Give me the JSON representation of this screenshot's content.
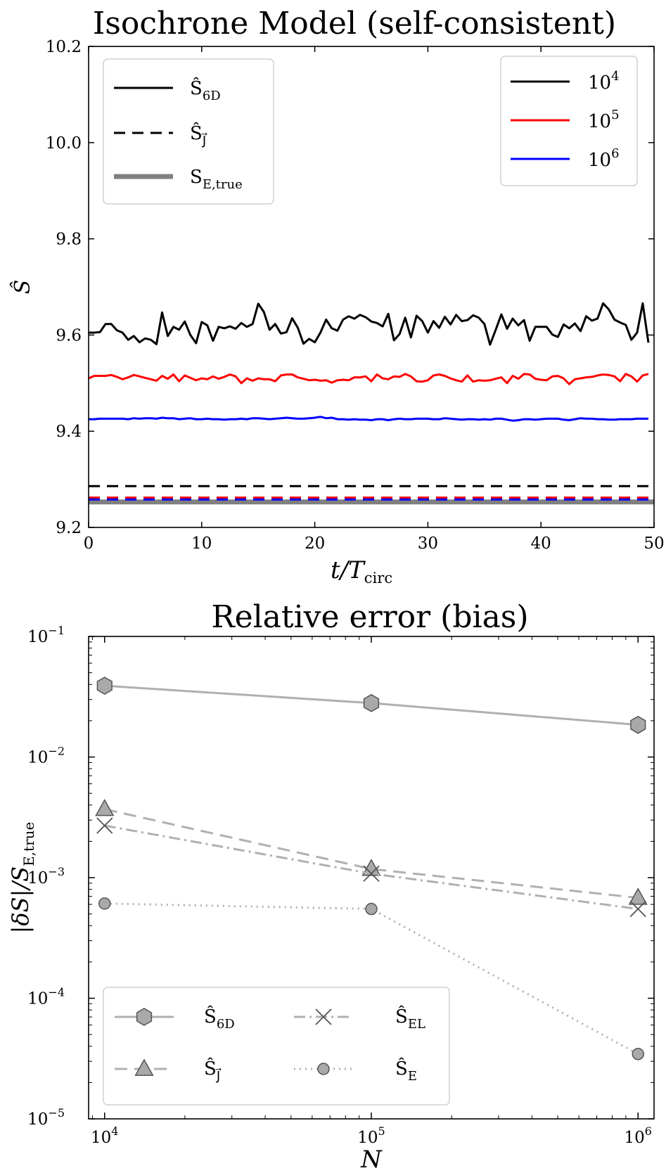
{
  "chart_data": [
    {
      "type": "line",
      "title": "Isochrone Model (self-consistent)",
      "xlabel_main": "t/T",
      "xlabel_sub": "circ",
      "ylabel": "Ŝ",
      "xlim": [
        0,
        50
      ],
      "ylim": [
        9.2,
        10.2
      ],
      "xticks": [
        0,
        10,
        20,
        30,
        40,
        50
      ],
      "xtick_labels": [
        "0",
        "10",
        "20",
        "30",
        "40",
        "50"
      ],
      "yticks": [
        9.2,
        9.4,
        9.6,
        9.8,
        10.0,
        10.2
      ],
      "ytick_labels": [
        "9.2",
        "9.4",
        "9.6",
        "9.8",
        "10.0",
        "10.2"
      ],
      "style_legend": [
        {
          "base": "Ŝ",
          "sub": "6D",
          "line": "solid"
        },
        {
          "base": "Ŝ",
          "sub": "J⃗",
          "line": "dashed"
        },
        {
          "base": "S",
          "sub": "E,true",
          "line": "thick-gray"
        }
      ],
      "color_legend": [
        {
          "base": "10",
          "sup": "4",
          "color": "#000000"
        },
        {
          "base": "10",
          "sup": "5",
          "color": "#ff0000"
        },
        {
          "base": "10",
          "sup": "6",
          "color": "#0000ff"
        }
      ],
      "true_value": 9.253,
      "true_color": "#808080",
      "series": [
        {
          "name": "6D N=1e4",
          "color": "#000000",
          "style": "solid",
          "x": [
            0,
            0.5,
            1,
            1.5,
            2,
            2.5,
            3,
            3.5,
            4,
            4.5,
            5,
            5.5,
            6,
            6.5,
            7,
            7.5,
            8,
            8.5,
            9,
            9.5,
            10,
            10.5,
            11,
            11.5,
            12,
            12.5,
            13,
            13.5,
            14,
            14.5,
            15,
            15.5,
            16,
            16.5,
            17,
            17.5,
            18,
            18.5,
            19,
            19.5,
            20,
            20.5,
            21,
            21.5,
            22,
            22.5,
            23,
            23.5,
            24,
            24.5,
            25,
            25.5,
            26,
            26.5,
            27,
            27.5,
            28,
            28.5,
            29,
            29.5,
            30,
            30.5,
            31,
            31.5,
            32,
            32.5,
            33,
            33.5,
            34,
            34.5,
            35,
            35.5,
            36,
            36.5,
            37,
            37.5,
            38,
            38.5,
            39,
            39.5,
            40,
            40.5,
            41,
            41.5,
            42,
            42.5,
            43,
            43.5,
            44,
            44.5,
            45,
            45.5,
            46,
            46.5,
            47,
            47.5,
            48,
            48.5,
            49,
            49.5
          ],
          "values": [
            9.605,
            9.605,
            9.606,
            9.623,
            9.623,
            9.61,
            9.605,
            9.59,
            9.598,
            9.585,
            9.593,
            9.59,
            9.581,
            9.647,
            9.598,
            9.617,
            9.611,
            9.628,
            9.6,
            9.583,
            9.627,
            9.62,
            9.588,
            9.617,
            9.614,
            9.618,
            9.613,
            9.625,
            9.617,
            9.623,
            9.665,
            9.648,
            9.611,
            9.623,
            9.603,
            9.606,
            9.635,
            9.615,
            9.582,
            9.592,
            9.585,
            9.605,
            9.632,
            9.614,
            9.609,
            9.632,
            9.639,
            9.634,
            9.642,
            9.637,
            9.628,
            9.625,
            9.618,
            9.644,
            9.589,
            9.602,
            9.636,
            9.595,
            9.64,
            9.629,
            9.605,
            9.629,
            9.615,
            9.638,
            9.622,
            9.642,
            9.629,
            9.631,
            9.641,
            9.636,
            9.623,
            9.58,
            9.611,
            9.643,
            9.613,
            9.634,
            9.62,
            9.631,
            9.588,
            9.617,
            9.617,
            9.617,
            9.601,
            9.596,
            9.622,
            9.614,
            9.624,
            9.608,
            9.639,
            9.63,
            9.634,
            9.666,
            9.653,
            9.632,
            9.626,
            9.621,
            9.59,
            9.605,
            9.666,
            9.584
          ]
        },
        {
          "name": "6D N=1e5",
          "color": "#ff0000",
          "style": "solid",
          "x": [
            0,
            0.5,
            1,
            1.5,
            2,
            2.5,
            3,
            3.5,
            4,
            4.5,
            5,
            5.5,
            6,
            6.5,
            7,
            7.5,
            8,
            8.5,
            9,
            9.5,
            10,
            10.5,
            11,
            11.5,
            12,
            12.5,
            13,
            13.5,
            14,
            14.5,
            15,
            15.5,
            16,
            16.5,
            17,
            17.5,
            18,
            18.5,
            19,
            19.5,
            20,
            20.5,
            21,
            21.5,
            22,
            22.5,
            23,
            23.5,
            24,
            24.5,
            25,
            25.5,
            26,
            26.5,
            27,
            27.5,
            28,
            28.5,
            29,
            29.5,
            30,
            30.5,
            31,
            31.5,
            32,
            32.5,
            33,
            33.5,
            34,
            34.5,
            35,
            35.5,
            36,
            36.5,
            37,
            37.5,
            38,
            38.5,
            39,
            39.5,
            40,
            40.5,
            41,
            41.5,
            42,
            42.5,
            43,
            43.5,
            44,
            44.5,
            45,
            45.5,
            46,
            46.5,
            47,
            47.5,
            48,
            48.5,
            49,
            49.5
          ],
          "values": [
            9.51,
            9.515,
            9.515,
            9.515,
            9.517,
            9.513,
            9.508,
            9.512,
            9.517,
            9.514,
            9.511,
            9.508,
            9.505,
            9.515,
            9.509,
            9.518,
            9.504,
            9.516,
            9.511,
            9.506,
            9.51,
            9.508,
            9.514,
            9.509,
            9.513,
            9.518,
            9.514,
            9.5,
            9.51,
            9.505,
            9.51,
            9.508,
            9.508,
            9.504,
            9.516,
            9.518,
            9.518,
            9.512,
            9.509,
            9.506,
            9.507,
            9.505,
            9.506,
            9.501,
            9.506,
            9.507,
            9.506,
            9.512,
            9.512,
            9.514,
            9.504,
            9.518,
            9.51,
            9.508,
            9.514,
            9.513,
            9.519,
            9.514,
            9.504,
            9.503,
            9.506,
            9.516,
            9.518,
            9.515,
            9.51,
            9.506,
            9.503,
            9.516,
            9.503,
            9.506,
            9.505,
            9.506,
            9.509,
            9.512,
            9.5,
            9.515,
            9.509,
            9.519,
            9.518,
            9.509,
            9.507,
            9.506,
            9.514,
            9.515,
            9.51,
            9.498,
            9.508,
            9.51,
            9.512,
            9.513,
            9.516,
            9.518,
            9.517,
            9.514,
            9.504,
            9.519,
            9.514,
            9.503,
            9.516,
            9.519
          ]
        },
        {
          "name": "6D N=1e6",
          "color": "#0000ff",
          "style": "solid",
          "x": [
            0,
            0.5,
            1,
            1.5,
            2,
            2.5,
            3,
            3.5,
            4,
            4.5,
            5,
            5.5,
            6,
            6.5,
            7,
            7.5,
            8,
            8.5,
            9,
            9.5,
            10,
            10.5,
            11,
            11.5,
            12,
            12.5,
            13,
            13.5,
            14,
            14.5,
            15,
            15.5,
            16,
            16.5,
            17,
            17.5,
            18,
            18.5,
            19,
            19.5,
            20,
            20.5,
            21,
            21.5,
            22,
            22.5,
            23,
            23.5,
            24,
            24.5,
            25,
            25.5,
            26,
            26.5,
            27,
            27.5,
            28,
            28.5,
            29,
            29.5,
            30,
            30.5,
            31,
            31.5,
            32,
            32.5,
            33,
            33.5,
            34,
            34.5,
            35,
            35.5,
            36,
            36.5,
            37,
            37.5,
            38,
            38.5,
            39,
            39.5,
            40,
            40.5,
            41,
            41.5,
            42,
            42.5,
            43,
            43.5,
            44,
            44.5,
            45,
            45.5,
            46,
            46.5,
            47,
            47.5,
            48,
            48.5,
            49,
            49.5
          ],
          "values": [
            9.425,
            9.425,
            9.426,
            9.426,
            9.426,
            9.426,
            9.426,
            9.425,
            9.427,
            9.426,
            9.427,
            9.427,
            9.426,
            9.428,
            9.427,
            9.427,
            9.425,
            9.426,
            9.427,
            9.425,
            9.425,
            9.426,
            9.425,
            9.425,
            9.424,
            9.425,
            9.425,
            9.426,
            9.425,
            9.427,
            9.427,
            9.426,
            9.425,
            9.426,
            9.427,
            9.428,
            9.427,
            9.426,
            9.426,
            9.427,
            9.428,
            9.43,
            9.427,
            9.428,
            9.425,
            9.425,
            9.424,
            9.425,
            9.424,
            9.424,
            9.423,
            9.425,
            9.425,
            9.423,
            9.425,
            9.426,
            9.425,
            9.425,
            9.426,
            9.426,
            9.426,
            9.425,
            9.425,
            9.427,
            9.426,
            9.425,
            9.424,
            9.425,
            9.425,
            9.424,
            9.425,
            9.424,
            9.426,
            9.426,
            9.424,
            9.422,
            9.423,
            9.425,
            9.425,
            9.424,
            9.425,
            9.426,
            9.426,
            9.426,
            9.424,
            9.423,
            9.425,
            9.427,
            9.426,
            9.426,
            9.425,
            9.425,
            9.424,
            9.424,
            9.425,
            9.425,
            9.425,
            9.426,
            9.426,
            9.426
          ]
        },
        {
          "name": "J N=1e4",
          "color": "#000000",
          "style": "dashed",
          "x": [
            0,
            50
          ],
          "values": [
            9.286,
            9.286
          ]
        },
        {
          "name": "J N=1e5",
          "color": "#ff0000",
          "style": "dashed",
          "x": [
            0,
            50
          ],
          "values": [
            9.262,
            9.262
          ]
        },
        {
          "name": "J N=1e6",
          "color": "#0000ff",
          "style": "dashed",
          "x": [
            0,
            50
          ],
          "values": [
            9.258,
            9.258
          ]
        }
      ]
    },
    {
      "type": "line",
      "scale": "log-log",
      "title": "Relative error (bias)",
      "xlabel": "N",
      "ylabel_main": "|δS|/S",
      "ylabel_sub": "E,true",
      "xlim_log10": [
        3.94,
        6.06
      ],
      "ylim_log10": [
        -5,
        -1
      ],
      "xticks_log10": [
        4,
        5,
        6
      ],
      "xtick_labels": [
        {
          "base": "10",
          "sup": "4"
        },
        {
          "base": "10",
          "sup": "5"
        },
        {
          "base": "10",
          "sup": "6"
        }
      ],
      "yticks_log10": [
        -5,
        -4,
        -3,
        -2,
        -1
      ],
      "ytick_labels": [
        {
          "base": "10",
          "sup": "−5"
        },
        {
          "base": "10",
          "sup": "−4"
        },
        {
          "base": "10",
          "sup": "−3"
        },
        {
          "base": "10",
          "sup": "−2"
        },
        {
          "base": "10",
          "sup": "−1"
        }
      ],
      "x": [
        10000,
        100000,
        1000000
      ],
      "line_color": "#b0b0b0",
      "marker_fill": "#a9a9a9",
      "marker_edge": "#555555",
      "series": [
        {
          "name": "Ŝ 6D",
          "base": "Ŝ",
          "sub": "6D",
          "style": "solid",
          "marker": "hexagon",
          "values": [
            0.039,
            0.028,
            0.0185
          ]
        },
        {
          "name": "Ŝ J",
          "base": "Ŝ",
          "sub": "J⃗",
          "style": "dashed",
          "marker": "triangle",
          "values": [
            0.0037,
            0.00118,
            0.00068
          ]
        },
        {
          "name": "Ŝ EL",
          "base": "Ŝ",
          "sub": "EL",
          "style": "dashdot",
          "marker": "x",
          "values": [
            0.0027,
            0.00108,
            0.00055
          ]
        },
        {
          "name": "Ŝ E",
          "base": "Ŝ",
          "sub": "E",
          "style": "dotted",
          "marker": "circle",
          "values": [
            0.00061,
            0.00055,
            3.45e-05
          ]
        }
      ]
    }
  ]
}
